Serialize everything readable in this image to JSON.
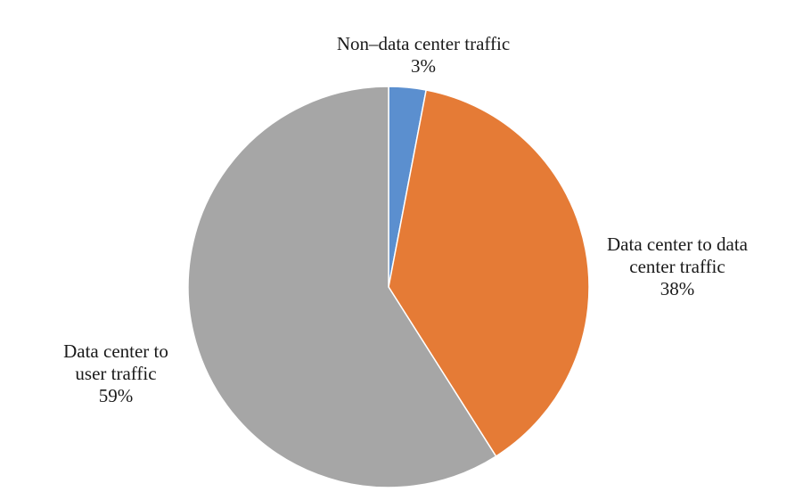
{
  "chart_data": {
    "type": "pie",
    "start_angle_deg": 0,
    "direction": "clockwise",
    "slices": [
      {
        "key": "non-dc",
        "label_lines": [
          "Non–data center traffic"
        ],
        "value": 3,
        "value_label": "3%",
        "color": "#5b8fcf"
      },
      {
        "key": "dc-dc",
        "label_lines": [
          "Data center to data",
          "center traffic"
        ],
        "value": 38,
        "value_label": "38%",
        "color": "#e57b36"
      },
      {
        "key": "dc-user",
        "label_lines": [
          "Data center to",
          "user traffic"
        ],
        "value": 59,
        "value_label": "59%",
        "color": "#a6a6a6"
      }
    ]
  }
}
